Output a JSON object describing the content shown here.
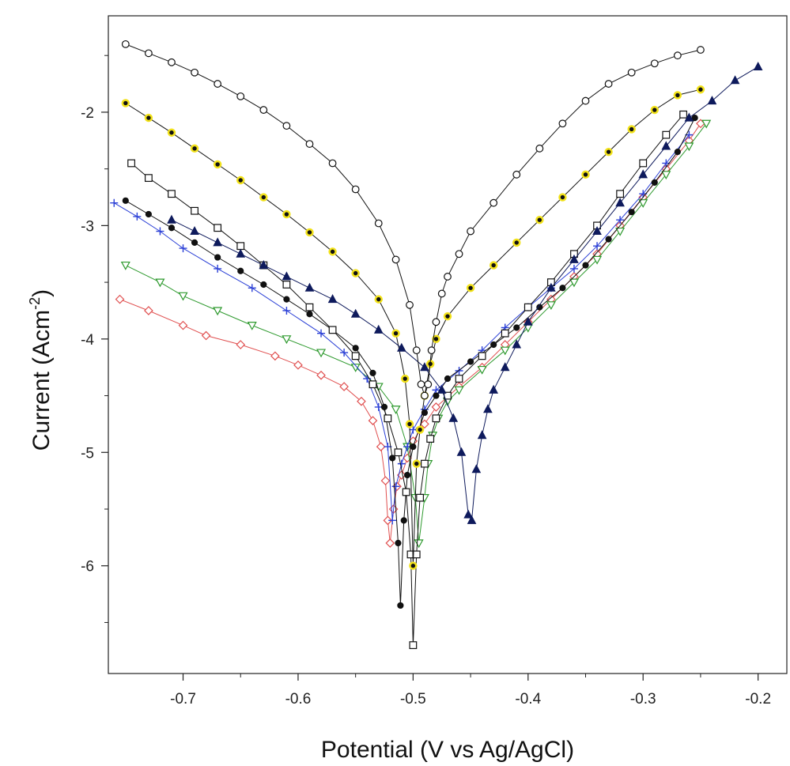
{
  "chart_data": {
    "type": "scatter",
    "xlabel": "Potential (V vs Ag/AgCl)",
    "ylabel": "Current (Acm",
    "ylabel_sup": "-2",
    "ylabel_close": ")",
    "xlim": [
      -0.765,
      -0.175
    ],
    "ylim": [
      -6.95,
      -1.15
    ],
    "xticks": [
      -0.7,
      -0.6,
      -0.5,
      -0.4,
      -0.3,
      -0.2
    ],
    "xtick_labels": [
      "-0.7",
      "-0.6",
      "-0.5",
      "-0.4",
      "-0.3",
      "-0.2"
    ],
    "yticks": [
      -2,
      -3,
      -4,
      -5,
      -6
    ],
    "ytick_labels": [
      "-2",
      "-3",
      "-4",
      "-5",
      "-6"
    ],
    "grid": false,
    "series": [
      {
        "marker": "diamond-open",
        "color": "#e05050",
        "x": [
          -0.755,
          -0.73,
          -0.7,
          -0.68,
          -0.65,
          -0.62,
          -0.6,
          -0.58,
          -0.56,
          -0.545,
          -0.535,
          -0.528,
          -0.524,
          -0.522,
          -0.52,
          -0.517,
          -0.514,
          -0.51,
          -0.505,
          -0.5,
          -0.49,
          -0.48,
          -0.46,
          -0.44,
          -0.42,
          -0.4,
          -0.38,
          -0.36,
          -0.34,
          -0.32,
          -0.3,
          -0.28,
          -0.26,
          -0.25
        ],
        "y": [
          -3.65,
          -3.75,
          -3.88,
          -3.97,
          -4.05,
          -4.15,
          -4.23,
          -4.32,
          -4.42,
          -4.55,
          -4.72,
          -4.95,
          -5.25,
          -5.6,
          -5.8,
          -5.5,
          -5.3,
          -5.2,
          -5.05,
          -4.9,
          -4.75,
          -4.6,
          -4.42,
          -4.25,
          -4.05,
          -3.85,
          -3.65,
          -3.45,
          -3.25,
          -3.0,
          -2.75,
          -2.5,
          -2.25,
          -2.1
        ]
      },
      {
        "marker": "triangle-open",
        "color": "#2f9a2f",
        "x": [
          -0.75,
          -0.72,
          -0.7,
          -0.67,
          -0.64,
          -0.61,
          -0.58,
          -0.55,
          -0.53,
          -0.515,
          -0.505,
          -0.498,
          -0.495,
          -0.49,
          -0.487,
          -0.483,
          -0.478,
          -0.47,
          -0.46,
          -0.44,
          -0.42,
          -0.4,
          -0.38,
          -0.36,
          -0.34,
          -0.32,
          -0.3,
          -0.28,
          -0.26,
          -0.245
        ],
        "y": [
          -3.35,
          -3.5,
          -3.62,
          -3.75,
          -3.88,
          -4.0,
          -4.12,
          -4.25,
          -4.42,
          -4.62,
          -4.95,
          -5.4,
          -5.8,
          -5.4,
          -5.1,
          -4.85,
          -4.7,
          -4.55,
          -4.45,
          -4.27,
          -4.1,
          -3.9,
          -3.7,
          -3.5,
          -3.3,
          -3.05,
          -2.8,
          -2.55,
          -2.3,
          -2.1
        ]
      },
      {
        "marker": "plus",
        "color": "#2a3fd6",
        "x": [
          -0.76,
          -0.74,
          -0.72,
          -0.7,
          -0.67,
          -0.64,
          -0.61,
          -0.58,
          -0.56,
          -0.54,
          -0.53,
          -0.522,
          -0.518,
          -0.515,
          -0.51,
          -0.505,
          -0.5,
          -0.49,
          -0.48,
          -0.46,
          -0.44,
          -0.42,
          -0.4,
          -0.38,
          -0.36,
          -0.34,
          -0.32,
          -0.3,
          -0.28,
          -0.26
        ],
        "y": [
          -2.8,
          -2.92,
          -3.05,
          -3.2,
          -3.38,
          -3.55,
          -3.75,
          -3.95,
          -4.12,
          -4.35,
          -4.6,
          -4.95,
          -5.6,
          -5.3,
          -5.1,
          -4.95,
          -4.8,
          -4.62,
          -4.45,
          -4.28,
          -4.1,
          -3.9,
          -3.72,
          -3.55,
          -3.38,
          -3.18,
          -2.95,
          -2.72,
          -2.45,
          -2.2
        ]
      },
      {
        "marker": "circle-filled",
        "color": "#111111",
        "x": [
          -0.75,
          -0.73,
          -0.71,
          -0.69,
          -0.67,
          -0.65,
          -0.63,
          -0.61,
          -0.59,
          -0.57,
          -0.55,
          -0.535,
          -0.525,
          -0.518,
          -0.513,
          -0.511,
          -0.508,
          -0.505,
          -0.5,
          -0.495,
          -0.49,
          -0.48,
          -0.47,
          -0.45,
          -0.43,
          -0.41,
          -0.39,
          -0.37,
          -0.35,
          -0.33,
          -0.31,
          -0.29,
          -0.27,
          -0.255
        ],
        "y": [
          -2.78,
          -2.9,
          -3.02,
          -3.15,
          -3.28,
          -3.4,
          -3.52,
          -3.65,
          -3.78,
          -3.92,
          -4.08,
          -4.3,
          -4.6,
          -5.05,
          -5.8,
          -6.35,
          -5.6,
          -5.2,
          -4.95,
          -4.8,
          -4.65,
          -4.5,
          -4.35,
          -4.2,
          -4.05,
          -3.9,
          -3.72,
          -3.55,
          -3.35,
          -3.12,
          -2.88,
          -2.62,
          -2.35,
          -2.05
        ]
      },
      {
        "marker": "square-open",
        "color": "#111111",
        "x": [
          -0.745,
          -0.73,
          -0.71,
          -0.69,
          -0.67,
          -0.65,
          -0.63,
          -0.61,
          -0.59,
          -0.57,
          -0.55,
          -0.535,
          -0.522,
          -0.513,
          -0.506,
          -0.502,
          -0.5,
          -0.497,
          -0.494,
          -0.49,
          -0.485,
          -0.48,
          -0.47,
          -0.46,
          -0.44,
          -0.42,
          -0.4,
          -0.38,
          -0.36,
          -0.34,
          -0.32,
          -0.3,
          -0.28,
          -0.265
        ],
        "y": [
          -2.45,
          -2.58,
          -2.72,
          -2.87,
          -3.02,
          -3.18,
          -3.35,
          -3.52,
          -3.72,
          -3.92,
          -4.15,
          -4.4,
          -4.7,
          -5.0,
          -5.35,
          -5.9,
          -6.7,
          -5.9,
          -5.4,
          -5.1,
          -4.88,
          -4.7,
          -4.5,
          -4.35,
          -4.15,
          -3.95,
          -3.72,
          -3.5,
          -3.25,
          -3.0,
          -2.72,
          -2.45,
          -2.2,
          -2.02
        ]
      },
      {
        "marker": "circle-filled-yellow",
        "color": "#f2e21a",
        "x": [
          -0.75,
          -0.73,
          -0.71,
          -0.69,
          -0.67,
          -0.65,
          -0.63,
          -0.61,
          -0.59,
          -0.57,
          -0.55,
          -0.53,
          -0.515,
          -0.507,
          -0.503,
          -0.5,
          -0.497,
          -0.494,
          -0.49,
          -0.485,
          -0.48,
          -0.47,
          -0.45,
          -0.43,
          -0.41,
          -0.39,
          -0.37,
          -0.35,
          -0.33,
          -0.31,
          -0.29,
          -0.27,
          -0.25
        ],
        "y": [
          -1.92,
          -2.05,
          -2.18,
          -2.32,
          -2.46,
          -2.6,
          -2.75,
          -2.9,
          -3.06,
          -3.23,
          -3.42,
          -3.65,
          -3.95,
          -4.35,
          -4.75,
          -6.0,
          -5.1,
          -4.8,
          -4.5,
          -4.22,
          -4.0,
          -3.8,
          -3.55,
          -3.35,
          -3.15,
          -2.95,
          -2.75,
          -2.55,
          -2.35,
          -2.15,
          -1.98,
          -1.85,
          -1.8
        ]
      },
      {
        "marker": "triangle-filled",
        "color": "#0e1a5c",
        "x": [
          -0.71,
          -0.69,
          -0.67,
          -0.65,
          -0.63,
          -0.61,
          -0.59,
          -0.57,
          -0.55,
          -0.53,
          -0.51,
          -0.49,
          -0.475,
          -0.465,
          -0.458,
          -0.452,
          -0.449,
          -0.445,
          -0.44,
          -0.435,
          -0.43,
          -0.42,
          -0.41,
          -0.4,
          -0.38,
          -0.36,
          -0.34,
          -0.32,
          -0.3,
          -0.28,
          -0.26,
          -0.24,
          -0.22,
          -0.2
        ],
        "y": [
          -2.95,
          -3.05,
          -3.15,
          -3.25,
          -3.35,
          -3.45,
          -3.55,
          -3.65,
          -3.78,
          -3.92,
          -4.08,
          -4.25,
          -4.45,
          -4.7,
          -5.0,
          -5.55,
          -5.6,
          -5.15,
          -4.85,
          -4.62,
          -4.45,
          -4.25,
          -4.05,
          -3.85,
          -3.55,
          -3.3,
          -3.05,
          -2.8,
          -2.55,
          -2.3,
          -2.05,
          -1.9,
          -1.72,
          -1.6
        ]
      },
      {
        "marker": "circle-open",
        "color": "#111111",
        "x": [
          -0.75,
          -0.73,
          -0.71,
          -0.69,
          -0.67,
          -0.65,
          -0.63,
          -0.61,
          -0.59,
          -0.57,
          -0.55,
          -0.53,
          -0.515,
          -0.503,
          -0.497,
          -0.493,
          -0.49,
          -0.487,
          -0.484,
          -0.48,
          -0.475,
          -0.47,
          -0.46,
          -0.45,
          -0.43,
          -0.41,
          -0.39,
          -0.37,
          -0.35,
          -0.33,
          -0.31,
          -0.29,
          -0.27,
          -0.25
        ],
        "y": [
          -1.4,
          -1.48,
          -1.56,
          -1.65,
          -1.75,
          -1.86,
          -1.98,
          -2.12,
          -2.28,
          -2.45,
          -2.68,
          -2.98,
          -3.3,
          -3.7,
          -4.1,
          -4.4,
          -4.5,
          -4.4,
          -4.1,
          -3.85,
          -3.6,
          -3.45,
          -3.25,
          -3.05,
          -2.8,
          -2.55,
          -2.32,
          -2.1,
          -1.9,
          -1.75,
          -1.65,
          -1.57,
          -1.5,
          -1.45
        ]
      }
    ]
  }
}
